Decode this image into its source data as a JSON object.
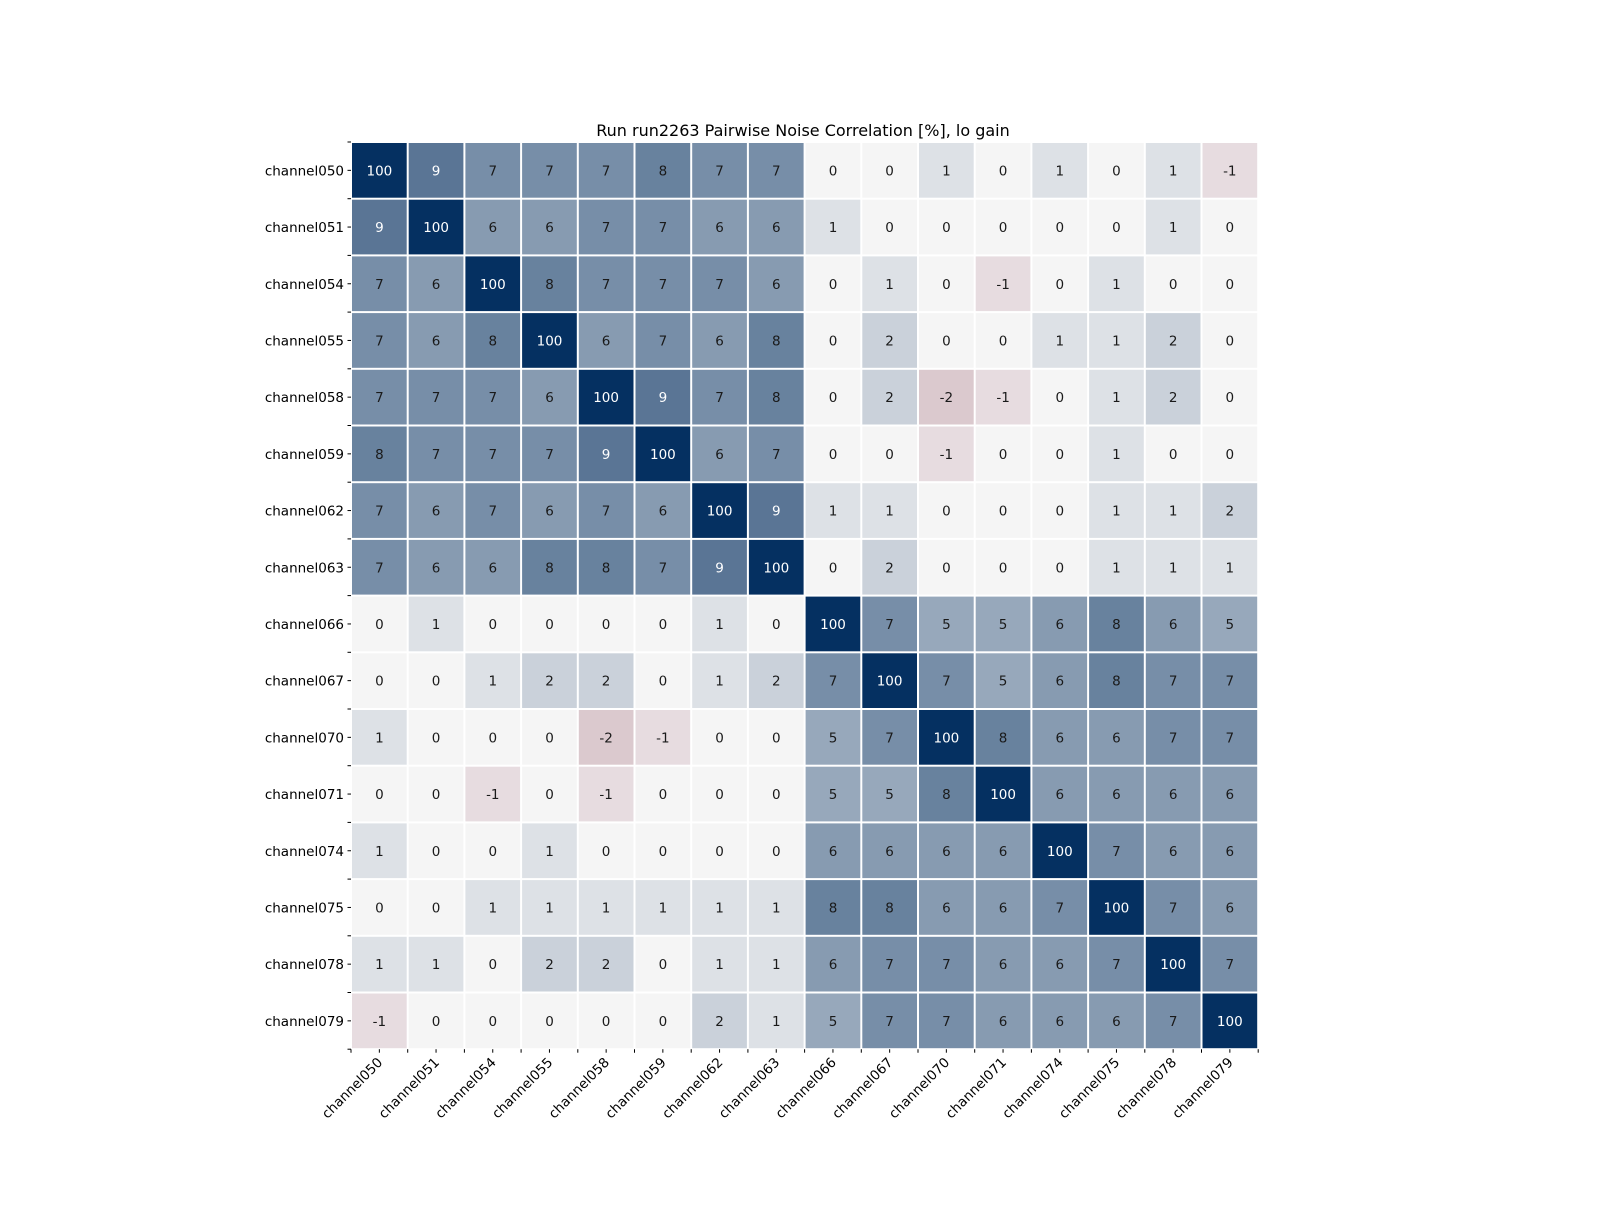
{
  "chart_data": {
    "type": "heatmap",
    "title": "Run run2263 Pairwise Noise Correlation [%], lo gain",
    "xlabel": "",
    "ylabel": "",
    "rows": [
      "channel050",
      "channel051",
      "channel054",
      "channel055",
      "channel058",
      "channel059",
      "channel062",
      "channel063",
      "channel066",
      "channel067",
      "channel070",
      "channel071",
      "channel074",
      "channel075",
      "channel078",
      "channel079"
    ],
    "columns": [
      "channel050",
      "channel051",
      "channel054",
      "channel055",
      "channel058",
      "channel059",
      "channel062",
      "channel063",
      "channel066",
      "channel067",
      "channel070",
      "channel071",
      "channel074",
      "channel075",
      "channel078",
      "channel079"
    ],
    "values": [
      [
        100,
        9,
        7,
        7,
        7,
        8,
        7,
        7,
        0,
        0,
        1,
        0,
        1,
        0,
        1,
        -1
      ],
      [
        9,
        100,
        6,
        6,
        7,
        7,
        6,
        6,
        1,
        0,
        0,
        0,
        0,
        0,
        1,
        0
      ],
      [
        7,
        6,
        100,
        8,
        7,
        7,
        7,
        6,
        0,
        1,
        0,
        -1,
        0,
        1,
        0,
        0
      ],
      [
        7,
        6,
        8,
        100,
        6,
        7,
        6,
        8,
        0,
        2,
        0,
        0,
        1,
        1,
        2,
        0
      ],
      [
        7,
        7,
        7,
        6,
        100,
        9,
        7,
        8,
        0,
        2,
        -2,
        -1,
        0,
        1,
        2,
        0
      ],
      [
        8,
        7,
        7,
        7,
        9,
        100,
        6,
        7,
        0,
        0,
        -1,
        0,
        0,
        1,
        0,
        0
      ],
      [
        7,
        6,
        7,
        6,
        7,
        6,
        100,
        9,
        1,
        1,
        0,
        0,
        0,
        1,
        1,
        2
      ],
      [
        7,
        6,
        6,
        8,
        8,
        7,
        9,
        100,
        0,
        2,
        0,
        0,
        0,
        1,
        1,
        1
      ],
      [
        0,
        1,
        0,
        0,
        0,
        0,
        1,
        0,
        100,
        7,
        5,
        5,
        6,
        8,
        6,
        5
      ],
      [
        0,
        0,
        1,
        2,
        2,
        0,
        1,
        2,
        7,
        100,
        7,
        5,
        6,
        8,
        7,
        7
      ],
      [
        1,
        0,
        0,
        0,
        -2,
        -1,
        0,
        0,
        5,
        7,
        100,
        8,
        6,
        6,
        7,
        7
      ],
      [
        0,
        0,
        -1,
        0,
        -1,
        0,
        0,
        0,
        5,
        5,
        8,
        100,
        6,
        6,
        6,
        6
      ],
      [
        1,
        0,
        0,
        1,
        0,
        0,
        0,
        0,
        6,
        6,
        6,
        6,
        100,
        7,
        6,
        6
      ],
      [
        0,
        0,
        1,
        1,
        1,
        1,
        1,
        1,
        8,
        8,
        6,
        6,
        7,
        100,
        7,
        6
      ],
      [
        1,
        1,
        0,
        2,
        2,
        0,
        1,
        1,
        6,
        7,
        7,
        6,
        6,
        7,
        100,
        7
      ],
      [
        -1,
        0,
        0,
        0,
        0,
        0,
        2,
        1,
        5,
        7,
        7,
        6,
        6,
        6,
        7,
        100
      ]
    ],
    "colormap": "diverging red-white-blue",
    "vmin": -15,
    "vmax": 15,
    "colors": {
      "neutral": "#f5f5f5",
      "positive_max": "#053061",
      "negative_max": "#67001f",
      "dark_text": "#1a1a1a",
      "light_text": "#ffffff"
    },
    "grid": false,
    "legend": "none"
  }
}
